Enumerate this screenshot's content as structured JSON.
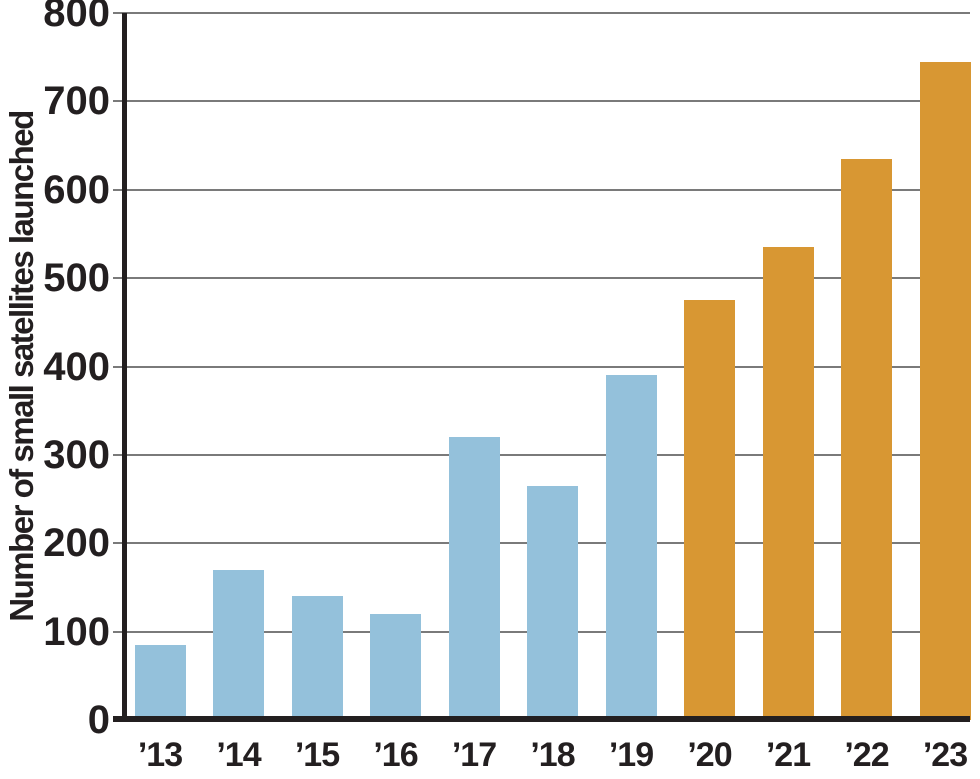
{
  "chart_data": {
    "type": "bar",
    "title": "",
    "xlabel": "",
    "ylabel": "Number of small satellites launched",
    "categories": [
      "’13",
      "’14",
      "’15",
      "’16",
      "’17",
      "’18",
      "’19",
      "’20",
      "’21",
      "’22",
      "’23"
    ],
    "values": [
      85,
      170,
      140,
      120,
      320,
      265,
      390,
      475,
      535,
      635,
      745
    ],
    "bar_colors": [
      "#94C1DB",
      "#94C1DB",
      "#94C1DB",
      "#94C1DB",
      "#94C1DB",
      "#94C1DB",
      "#94C1DB",
      "#D89733",
      "#D89733",
      "#D89733",
      "#D89733"
    ],
    "yticks": [
      0,
      100,
      200,
      300,
      400,
      500,
      600,
      700,
      800
    ],
    "ylim": [
      0,
      800
    ],
    "grid": "horizontal",
    "legend_position": "none",
    "axis_color": "#231F20",
    "gridline_color": "#7A7A7A",
    "text_color": "#231F20"
  }
}
